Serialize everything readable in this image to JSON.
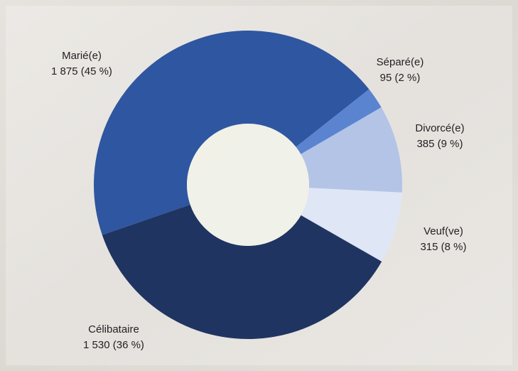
{
  "chart_data": {
    "type": "donut",
    "categories": [
      "Marié(e)",
      "Séparé(e)",
      "Divorcé(e)",
      "Veuf(ve)",
      "Célibataire"
    ],
    "values": [
      1875,
      95,
      385,
      315,
      1530
    ],
    "value_labels": [
      "1 875 (45 %)",
      "95 (2 %)",
      "385 (9 %)",
      "315 (8 %)",
      "1 530 (36 %)"
    ],
    "colors": [
      "#2f56a0",
      "#5a84d0",
      "#b3c4e6",
      "#dfe6f5",
      "#1f3461"
    ]
  }
}
